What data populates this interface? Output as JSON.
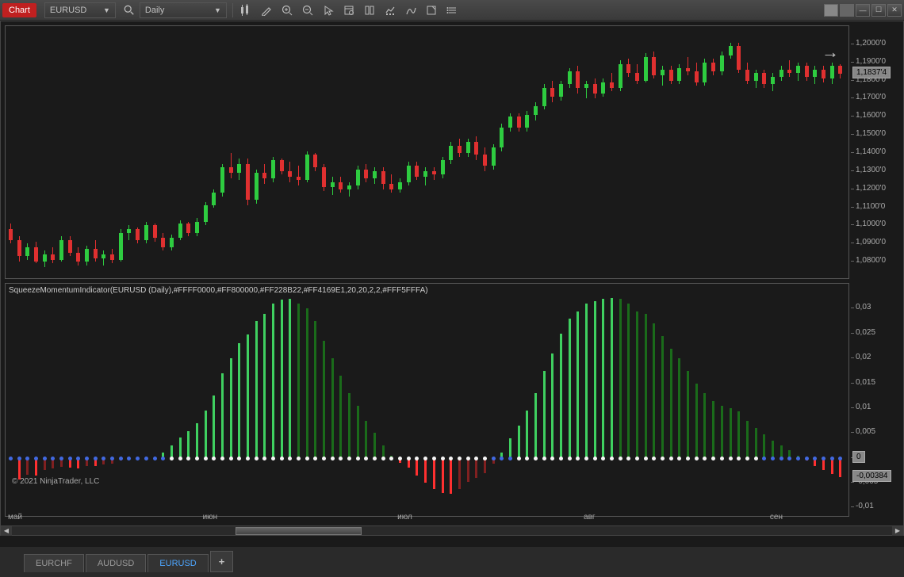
{
  "toolbar": {
    "chart_label": "Chart",
    "symbol": "EURUSD",
    "timeframe": "Daily"
  },
  "window_buttons": [
    "▭",
    "▭",
    "—",
    "☐",
    "✕"
  ],
  "price_axis": {
    "ticks": [
      {
        "v": 1.2,
        "label": "1,2000'0"
      },
      {
        "v": 1.19,
        "label": "1,1900'0"
      },
      {
        "v": 1.18,
        "label": "1,1800'0"
      },
      {
        "v": 1.17,
        "label": "1,1700'0"
      },
      {
        "v": 1.16,
        "label": "1,1600'0"
      },
      {
        "v": 1.15,
        "label": "1,1500'0"
      },
      {
        "v": 1.14,
        "label": "1,1400'0"
      },
      {
        "v": 1.13,
        "label": "1,1300'0"
      },
      {
        "v": 1.12,
        "label": "1,1200'0"
      },
      {
        "v": 1.11,
        "label": "1,1100'0"
      },
      {
        "v": 1.1,
        "label": "1,1000'0"
      },
      {
        "v": 1.09,
        "label": "1,0900'0"
      },
      {
        "v": 1.08,
        "label": "1,0800'0"
      }
    ],
    "ymin": 1.07,
    "ymax": 1.21,
    "current_tag": "1,1837'4",
    "current_val": 1.18374
  },
  "indicator": {
    "label": "SqueezeMomentumIndicator(EURUSD (Daily),#FFFF0000,#FF800000,#FF228B22,#FF4169E1,20,20,2,2,#FFF5FFFA)",
    "ticks": [
      {
        "v": 0.03,
        "label": "0,03"
      },
      {
        "v": 0.025,
        "label": "0,025"
      },
      {
        "v": 0.02,
        "label": "0,02"
      },
      {
        "v": 0.015,
        "label": "0,015"
      },
      {
        "v": 0.01,
        "label": "0,01"
      },
      {
        "v": 0.005,
        "label": "0,005"
      },
      {
        "v": 0.0,
        "label": "0"
      },
      {
        "v": -0.005,
        "label": "-0,005"
      },
      {
        "v": -0.01,
        "label": "-0,01"
      }
    ],
    "ymin": -0.012,
    "ymax": 0.035,
    "current_tag": "-0,00384",
    "current_val": -0.00384,
    "colors": {
      "up_light": "#3fd060",
      "up_dark": "#1a6b1a",
      "down_light": "#ff3030",
      "down_dark": "#802020",
      "dot_on": "#f5f5f5",
      "dot_off": "#4169e1"
    }
  },
  "x_axis": {
    "ticks": [
      {
        "i": 0,
        "label": "май"
      },
      {
        "i": 23,
        "label": "июн"
      },
      {
        "i": 46,
        "label": "июл"
      },
      {
        "i": 68,
        "label": "авг"
      },
      {
        "i": 90,
        "label": "сен"
      }
    ]
  },
  "copyright": "© 2021 NinjaTrader, LLC",
  "tabs": [
    {
      "label": "EURCHF",
      "active": false
    },
    {
      "label": "AUDUSD",
      "active": false
    },
    {
      "label": "EURUSD",
      "active": true
    }
  ],
  "scrollbar": {
    "thumb_left_pct": 26,
    "thumb_width_pct": 14
  },
  "candles": [
    {
      "o": 1.098,
      "h": 1.101,
      "l": 1.09,
      "c": 1.092
    },
    {
      "o": 1.092,
      "h": 1.094,
      "l": 1.08,
      "c": 1.083
    },
    {
      "o": 1.083,
      "h": 1.09,
      "l": 1.081,
      "c": 1.088
    },
    {
      "o": 1.088,
      "h": 1.091,
      "l": 1.079,
      "c": 1.08
    },
    {
      "o": 1.08,
      "h": 1.086,
      "l": 1.077,
      "c": 1.084
    },
    {
      "o": 1.084,
      "h": 1.088,
      "l": 1.079,
      "c": 1.081
    },
    {
      "o": 1.081,
      "h": 1.094,
      "l": 1.08,
      "c": 1.092
    },
    {
      "o": 1.092,
      "h": 1.094,
      "l": 1.083,
      "c": 1.085
    },
    {
      "o": 1.085,
      "h": 1.088,
      "l": 1.078,
      "c": 1.08
    },
    {
      "o": 1.08,
      "h": 1.089,
      "l": 1.078,
      "c": 1.087
    },
    {
      "o": 1.087,
      "h": 1.092,
      "l": 1.08,
      "c": 1.082
    },
    {
      "o": 1.082,
      "h": 1.086,
      "l": 1.078,
      "c": 1.084
    },
    {
      "o": 1.084,
      "h": 1.087,
      "l": 1.079,
      "c": 1.081
    },
    {
      "o": 1.081,
      "h": 1.098,
      "l": 1.08,
      "c": 1.096
    },
    {
      "o": 1.096,
      "h": 1.1,
      "l": 1.092,
      "c": 1.098
    },
    {
      "o": 1.098,
      "h": 1.099,
      "l": 1.09,
      "c": 1.092
    },
    {
      "o": 1.092,
      "h": 1.102,
      "l": 1.09,
      "c": 1.1
    },
    {
      "o": 1.1,
      "h": 1.101,
      "l": 1.091,
      "c": 1.093
    },
    {
      "o": 1.093,
      "h": 1.096,
      "l": 1.086,
      "c": 1.088
    },
    {
      "o": 1.088,
      "h": 1.095,
      "l": 1.086,
      "c": 1.093
    },
    {
      "o": 1.093,
      "h": 1.103,
      "l": 1.092,
      "c": 1.101
    },
    {
      "o": 1.101,
      "h": 1.102,
      "l": 1.094,
      "c": 1.096
    },
    {
      "o": 1.096,
      "h": 1.104,
      "l": 1.094,
      "c": 1.102
    },
    {
      "o": 1.102,
      "h": 1.113,
      "l": 1.1,
      "c": 1.111
    },
    {
      "o": 1.111,
      "h": 1.12,
      "l": 1.11,
      "c": 1.118
    },
    {
      "o": 1.118,
      "h": 1.134,
      "l": 1.116,
      "c": 1.132
    },
    {
      "o": 1.132,
      "h": 1.14,
      "l": 1.126,
      "c": 1.129
    },
    {
      "o": 1.129,
      "h": 1.137,
      "l": 1.125,
      "c": 1.134
    },
    {
      "o": 1.134,
      "h": 1.137,
      "l": 1.111,
      "c": 1.114
    },
    {
      "o": 1.114,
      "h": 1.131,
      "l": 1.112,
      "c": 1.129
    },
    {
      "o": 1.129,
      "h": 1.134,
      "l": 1.123,
      "c": 1.126
    },
    {
      "o": 1.126,
      "h": 1.138,
      "l": 1.124,
      "c": 1.136
    },
    {
      "o": 1.136,
      "h": 1.137,
      "l": 1.128,
      "c": 1.13
    },
    {
      "o": 1.13,
      "h": 1.135,
      "l": 1.124,
      "c": 1.127
    },
    {
      "o": 1.127,
      "h": 1.133,
      "l": 1.122,
      "c": 1.125
    },
    {
      "o": 1.125,
      "h": 1.141,
      "l": 1.124,
      "c": 1.139
    },
    {
      "o": 1.139,
      "h": 1.14,
      "l": 1.13,
      "c": 1.132
    },
    {
      "o": 1.132,
      "h": 1.134,
      "l": 1.119,
      "c": 1.121
    },
    {
      "o": 1.121,
      "h": 1.127,
      "l": 1.117,
      "c": 1.124
    },
    {
      "o": 1.124,
      "h": 1.127,
      "l": 1.118,
      "c": 1.12
    },
    {
      "o": 1.12,
      "h": 1.124,
      "l": 1.116,
      "c": 1.122
    },
    {
      "o": 1.122,
      "h": 1.133,
      "l": 1.12,
      "c": 1.131
    },
    {
      "o": 1.131,
      "h": 1.134,
      "l": 1.124,
      "c": 1.126
    },
    {
      "o": 1.126,
      "h": 1.132,
      "l": 1.123,
      "c": 1.13
    },
    {
      "o": 1.13,
      "h": 1.132,
      "l": 1.12,
      "c": 1.123
    },
    {
      "o": 1.123,
      "h": 1.128,
      "l": 1.118,
      "c": 1.12
    },
    {
      "o": 1.12,
      "h": 1.126,
      "l": 1.118,
      "c": 1.124
    },
    {
      "o": 1.124,
      "h": 1.135,
      "l": 1.122,
      "c": 1.133
    },
    {
      "o": 1.133,
      "h": 1.135,
      "l": 1.125,
      "c": 1.127
    },
    {
      "o": 1.127,
      "h": 1.132,
      "l": 1.122,
      "c": 1.13
    },
    {
      "o": 1.13,
      "h": 1.132,
      "l": 1.125,
      "c": 1.128
    },
    {
      "o": 1.128,
      "h": 1.138,
      "l": 1.126,
      "c": 1.136
    },
    {
      "o": 1.136,
      "h": 1.146,
      "l": 1.134,
      "c": 1.144
    },
    {
      "o": 1.144,
      "h": 1.148,
      "l": 1.138,
      "c": 1.14
    },
    {
      "o": 1.14,
      "h": 1.148,
      "l": 1.138,
      "c": 1.146
    },
    {
      "o": 1.146,
      "h": 1.149,
      "l": 1.136,
      "c": 1.139
    },
    {
      "o": 1.139,
      "h": 1.143,
      "l": 1.13,
      "c": 1.133
    },
    {
      "o": 1.133,
      "h": 1.145,
      "l": 1.131,
      "c": 1.143
    },
    {
      "o": 1.143,
      "h": 1.156,
      "l": 1.141,
      "c": 1.154
    },
    {
      "o": 1.154,
      "h": 1.162,
      "l": 1.152,
      "c": 1.16
    },
    {
      "o": 1.16,
      "h": 1.162,
      "l": 1.152,
      "c": 1.154
    },
    {
      "o": 1.154,
      "h": 1.163,
      "l": 1.152,
      "c": 1.161
    },
    {
      "o": 1.161,
      "h": 1.168,
      "l": 1.158,
      "c": 1.166
    },
    {
      "o": 1.166,
      "h": 1.178,
      "l": 1.164,
      "c": 1.176
    },
    {
      "o": 1.176,
      "h": 1.18,
      "l": 1.168,
      "c": 1.171
    },
    {
      "o": 1.171,
      "h": 1.18,
      "l": 1.169,
      "c": 1.178
    },
    {
      "o": 1.178,
      "h": 1.187,
      "l": 1.176,
      "c": 1.185
    },
    {
      "o": 1.185,
      "h": 1.188,
      "l": 1.173,
      "c": 1.176
    },
    {
      "o": 1.176,
      "h": 1.18,
      "l": 1.17,
      "c": 1.178
    },
    {
      "o": 1.178,
      "h": 1.181,
      "l": 1.17,
      "c": 1.173
    },
    {
      "o": 1.173,
      "h": 1.181,
      "l": 1.171,
      "c": 1.179
    },
    {
      "o": 1.179,
      "h": 1.184,
      "l": 1.174,
      "c": 1.176
    },
    {
      "o": 1.176,
      "h": 1.191,
      "l": 1.174,
      "c": 1.189
    },
    {
      "o": 1.189,
      "h": 1.192,
      "l": 1.182,
      "c": 1.184
    },
    {
      "o": 1.184,
      "h": 1.189,
      "l": 1.178,
      "c": 1.18
    },
    {
      "o": 1.18,
      "h": 1.195,
      "l": 1.179,
      "c": 1.193
    },
    {
      "o": 1.193,
      "h": 1.196,
      "l": 1.181,
      "c": 1.183
    },
    {
      "o": 1.183,
      "h": 1.188,
      "l": 1.177,
      "c": 1.186
    },
    {
      "o": 1.186,
      "h": 1.188,
      "l": 1.178,
      "c": 1.18
    },
    {
      "o": 1.18,
      "h": 1.189,
      "l": 1.178,
      "c": 1.187
    },
    {
      "o": 1.187,
      "h": 1.193,
      "l": 1.183,
      "c": 1.185
    },
    {
      "o": 1.185,
      "h": 1.19,
      "l": 1.177,
      "c": 1.179
    },
    {
      "o": 1.179,
      "h": 1.192,
      "l": 1.177,
      "c": 1.19
    },
    {
      "o": 1.19,
      "h": 1.192,
      "l": 1.183,
      "c": 1.185
    },
    {
      "o": 1.185,
      "h": 1.196,
      "l": 1.183,
      "c": 1.194
    },
    {
      "o": 1.194,
      "h": 1.201,
      "l": 1.192,
      "c": 1.199
    },
    {
      "o": 1.199,
      "h": 1.201,
      "l": 1.184,
      "c": 1.186
    },
    {
      "o": 1.186,
      "h": 1.19,
      "l": 1.178,
      "c": 1.18
    },
    {
      "o": 1.18,
      "h": 1.186,
      "l": 1.176,
      "c": 1.184
    },
    {
      "o": 1.184,
      "h": 1.186,
      "l": 1.176,
      "c": 1.178
    },
    {
      "o": 1.178,
      "h": 1.184,
      "l": 1.174,
      "c": 1.182
    },
    {
      "o": 1.182,
      "h": 1.188,
      "l": 1.18,
      "c": 1.186
    },
    {
      "o": 1.186,
      "h": 1.191,
      "l": 1.182,
      "c": 1.184
    },
    {
      "o": 1.184,
      "h": 1.19,
      "l": 1.18,
      "c": 1.188
    },
    {
      "o": 1.188,
      "h": 1.19,
      "l": 1.18,
      "c": 1.182
    },
    {
      "o": 1.182,
      "h": 1.188,
      "l": 1.178,
      "c": 1.186
    },
    {
      "o": 1.186,
      "h": 1.188,
      "l": 1.179,
      "c": 1.181
    },
    {
      "o": 1.181,
      "h": 1.19,
      "l": 1.178,
      "c": 1.188
    },
    {
      "o": 1.188,
      "h": 1.189,
      "l": 1.181,
      "c": 1.18374
    }
  ],
  "momentum": [
    {
      "v": -0.0004,
      "s": "off"
    },
    {
      "v": -0.0044,
      "s": "off"
    },
    {
      "v": -0.0034,
      "s": "off"
    },
    {
      "v": -0.0036,
      "s": "off"
    },
    {
      "v": -0.0025,
      "s": "off"
    },
    {
      "v": -0.0022,
      "s": "off"
    },
    {
      "v": -0.0018,
      "s": "off"
    },
    {
      "v": -0.002,
      "s": "off"
    },
    {
      "v": -0.0021,
      "s": "off"
    },
    {
      "v": -0.0016,
      "s": "off"
    },
    {
      "v": -0.0017,
      "s": "off"
    },
    {
      "v": -0.0013,
      "s": "off"
    },
    {
      "v": -0.0012,
      "s": "off"
    },
    {
      "v": -0.0006,
      "s": "off"
    },
    {
      "v": -0.0002,
      "s": "off"
    },
    {
      "v": -0.0003,
      "s": "off"
    },
    {
      "v": 0.0001,
      "s": "off"
    },
    {
      "v": 0.0,
      "s": "off"
    },
    {
      "v": 0.0011,
      "s": "off"
    },
    {
      "v": 0.0025,
      "s": "on"
    },
    {
      "v": 0.0041,
      "s": "on"
    },
    {
      "v": 0.0054,
      "s": "on"
    },
    {
      "v": 0.007,
      "s": "on"
    },
    {
      "v": 0.0095,
      "s": "on"
    },
    {
      "v": 0.0125,
      "s": "on"
    },
    {
      "v": 0.017,
      "s": "on"
    },
    {
      "v": 0.02,
      "s": "on"
    },
    {
      "v": 0.023,
      "s": "on"
    },
    {
      "v": 0.0248,
      "s": "on"
    },
    {
      "v": 0.0275,
      "s": "on"
    },
    {
      "v": 0.029,
      "s": "on"
    },
    {
      "v": 0.031,
      "s": "on"
    },
    {
      "v": 0.0318,
      "s": "on"
    },
    {
      "v": 0.032,
      "s": "on"
    },
    {
      "v": 0.031,
      "s": "on"
    },
    {
      "v": 0.03,
      "s": "on"
    },
    {
      "v": 0.0275,
      "s": "on"
    },
    {
      "v": 0.0235,
      "s": "on"
    },
    {
      "v": 0.02,
      "s": "on"
    },
    {
      "v": 0.0165,
      "s": "on"
    },
    {
      "v": 0.013,
      "s": "on"
    },
    {
      "v": 0.0105,
      "s": "on"
    },
    {
      "v": 0.0075,
      "s": "on"
    },
    {
      "v": 0.005,
      "s": "on"
    },
    {
      "v": 0.0025,
      "s": "on"
    },
    {
      "v": 0.0005,
      "s": "on"
    },
    {
      "v": -0.001,
      "s": "on"
    },
    {
      "v": -0.002,
      "s": "on"
    },
    {
      "v": -0.0035,
      "s": "on"
    },
    {
      "v": -0.005,
      "s": "on"
    },
    {
      "v": -0.0063,
      "s": "on"
    },
    {
      "v": -0.007,
      "s": "on"
    },
    {
      "v": -0.0072,
      "s": "on"
    },
    {
      "v": -0.0062,
      "s": "on"
    },
    {
      "v": -0.0048,
      "s": "on"
    },
    {
      "v": -0.004,
      "s": "on"
    },
    {
      "v": -0.003,
      "s": "on"
    },
    {
      "v": -0.0012,
      "s": "off"
    },
    {
      "v": 0.001,
      "s": "off"
    },
    {
      "v": 0.004,
      "s": "off"
    },
    {
      "v": 0.0065,
      "s": "on"
    },
    {
      "v": 0.0095,
      "s": "on"
    },
    {
      "v": 0.013,
      "s": "on"
    },
    {
      "v": 0.0175,
      "s": "on"
    },
    {
      "v": 0.021,
      "s": "on"
    },
    {
      "v": 0.025,
      "s": "on"
    },
    {
      "v": 0.028,
      "s": "on"
    },
    {
      "v": 0.0295,
      "s": "on"
    },
    {
      "v": 0.031,
      "s": "on"
    },
    {
      "v": 0.0315,
      "s": "on"
    },
    {
      "v": 0.032,
      "s": "on"
    },
    {
      "v": 0.0322,
      "s": "on"
    },
    {
      "v": 0.032,
      "s": "on"
    },
    {
      "v": 0.031,
      "s": "on"
    },
    {
      "v": 0.0295,
      "s": "on"
    },
    {
      "v": 0.029,
      "s": "on"
    },
    {
      "v": 0.027,
      "s": "on"
    },
    {
      "v": 0.0245,
      "s": "on"
    },
    {
      "v": 0.022,
      "s": "on"
    },
    {
      "v": 0.02,
      "s": "on"
    },
    {
      "v": 0.0175,
      "s": "on"
    },
    {
      "v": 0.015,
      "s": "on"
    },
    {
      "v": 0.013,
      "s": "on"
    },
    {
      "v": 0.0115,
      "s": "on"
    },
    {
      "v": 0.0105,
      "s": "on"
    },
    {
      "v": 0.01,
      "s": "on"
    },
    {
      "v": 0.0093,
      "s": "on"
    },
    {
      "v": 0.0075,
      "s": "on"
    },
    {
      "v": 0.006,
      "s": "on"
    },
    {
      "v": 0.0048,
      "s": "off"
    },
    {
      "v": 0.0035,
      "s": "off"
    },
    {
      "v": 0.0025,
      "s": "off"
    },
    {
      "v": 0.0015,
      "s": "off"
    },
    {
      "v": 0.0005,
      "s": "off"
    },
    {
      "v": -0.0006,
      "s": "off"
    },
    {
      "v": -0.0016,
      "s": "off"
    },
    {
      "v": -0.0024,
      "s": "off"
    },
    {
      "v": -0.0032,
      "s": "off"
    },
    {
      "v": -0.00384,
      "s": "off"
    }
  ]
}
